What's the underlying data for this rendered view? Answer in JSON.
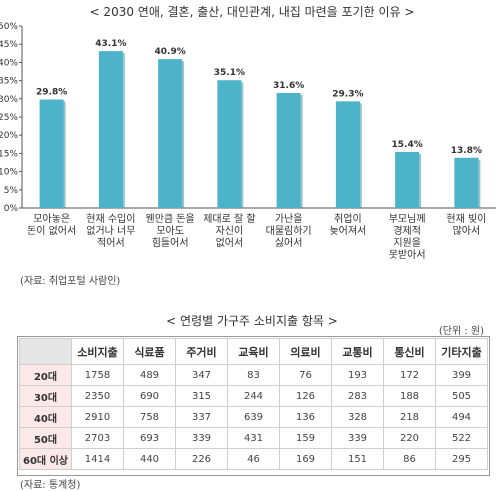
{
  "chart_data": {
    "type": "bar",
    "title": "< 2030 연애, 결혼, 출산, 대인관계, 내집 마련을 포기한 이유 >",
    "categories": [
      [
        "모아놓은",
        "돈이 없어서"
      ],
      [
        "현재 수입이",
        "없거나 너무",
        "적어서"
      ],
      [
        "웬만큼 돈을",
        "모아도",
        "힘들어서"
      ],
      [
        "제대로 잘 할",
        "자신이",
        "없어서"
      ],
      [
        "가난을",
        "대물림하기",
        "싫어서"
      ],
      [
        "취업이",
        "늦어져서"
      ],
      [
        "부모님께",
        "경제적",
        "지원을",
        "못받아서"
      ],
      [
        "현재 빚이",
        "많아서"
      ]
    ],
    "values": [
      29.8,
      43.1,
      40.9,
      35.1,
      31.6,
      29.3,
      15.4,
      13.8
    ],
    "value_labels": [
      "29.8%",
      "43.1%",
      "40.9%",
      "35.1%",
      "31.6%",
      "29.3%",
      "15.4%",
      "13.8%"
    ],
    "y_ticks": [
      "0%",
      "5%",
      "10%",
      "15%",
      "20%",
      "25%",
      "30%",
      "35%",
      "40%",
      "45%",
      "50%"
    ],
    "ylim": [
      0,
      50
    ],
    "bar_color": "#4db3c9",
    "bar_shadow_color": "#2f8aa0",
    "grid": false,
    "source": "(자료: 취업포털 사람인)"
  },
  "table": {
    "title": "< 연령별 가구주 소비지출 항목 >",
    "unit": "(단위 : 원)",
    "columns": [
      "소비지출",
      "식료품",
      "주거비",
      "교육비",
      "의료비",
      "교통비",
      "통신비",
      "기타지출"
    ],
    "rows": [
      {
        "label": "20대",
        "values": [
          "1758",
          "489",
          "347",
          "83",
          "76",
          "193",
          "172",
          "399"
        ]
      },
      {
        "label": "30대",
        "values": [
          "2350",
          "690",
          "315",
          "244",
          "126",
          "283",
          "188",
          "505"
        ]
      },
      {
        "label": "40대",
        "values": [
          "2910",
          "758",
          "337",
          "639",
          "136",
          "328",
          "218",
          "494"
        ]
      },
      {
        "label": "50대",
        "values": [
          "2703",
          "693",
          "339",
          "431",
          "159",
          "339",
          "220",
          "522"
        ]
      },
      {
        "label": "60대 이상",
        "values": [
          "1414",
          "440",
          "226",
          "46",
          "169",
          "151",
          "86",
          "295"
        ]
      }
    ],
    "source": "(자료: 통계청)"
  }
}
